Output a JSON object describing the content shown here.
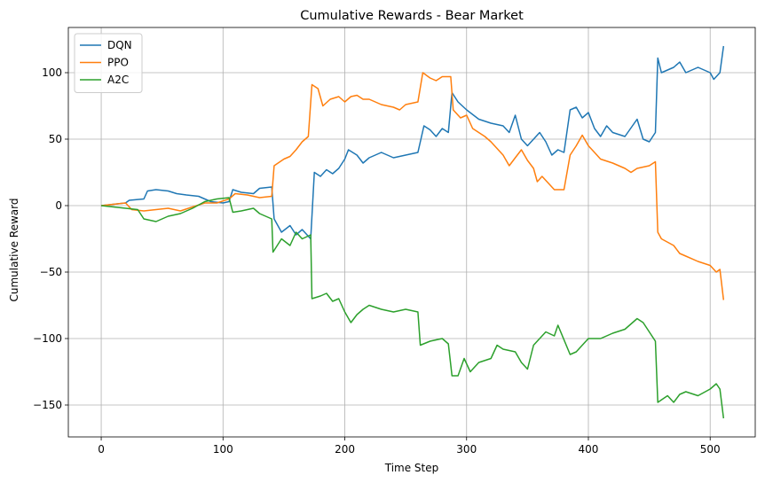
{
  "chart_data": {
    "type": "line",
    "title": "Cumulative Rewards - Bear Market",
    "xlabel": "Time Step",
    "ylabel": "Cumulative Reward",
    "xlim": [
      -27,
      537
    ],
    "ylim": [
      -174,
      134
    ],
    "xticks": [
      0,
      100,
      200,
      300,
      400,
      500
    ],
    "yticks": [
      -150,
      -100,
      -50,
      0,
      50,
      100
    ],
    "grid": true,
    "legend_position": "top-left",
    "series": [
      {
        "name": "DQN",
        "color": "#1f77b4",
        "points": [
          [
            0,
            0
          ],
          [
            10,
            1
          ],
          [
            20,
            2
          ],
          [
            23,
            4
          ],
          [
            35,
            5
          ],
          [
            38,
            11
          ],
          [
            45,
            12
          ],
          [
            55,
            11
          ],
          [
            62,
            9
          ],
          [
            70,
            8
          ],
          [
            80,
            7
          ],
          [
            90,
            3
          ],
          [
            100,
            2
          ],
          [
            105,
            3
          ],
          [
            108,
            12
          ],
          [
            115,
            10
          ],
          [
            125,
            9
          ],
          [
            130,
            13
          ],
          [
            140,
            14
          ],
          [
            142,
            -10
          ],
          [
            148,
            -20
          ],
          [
            155,
            -15
          ],
          [
            160,
            -22
          ],
          [
            165,
            -18
          ],
          [
            172,
            -25
          ],
          [
            175,
            25
          ],
          [
            180,
            22
          ],
          [
            185,
            27
          ],
          [
            190,
            24
          ],
          [
            195,
            28
          ],
          [
            200,
            35
          ],
          [
            203,
            42
          ],
          [
            210,
            38
          ],
          [
            215,
            32
          ],
          [
            220,
            36
          ],
          [
            230,
            40
          ],
          [
            240,
            36
          ],
          [
            250,
            38
          ],
          [
            260,
            40
          ],
          [
            265,
            60
          ],
          [
            270,
            57
          ],
          [
            275,
            52
          ],
          [
            280,
            58
          ],
          [
            285,
            55
          ],
          [
            288,
            85
          ],
          [
            293,
            78
          ],
          [
            300,
            72
          ],
          [
            310,
            65
          ],
          [
            320,
            62
          ],
          [
            330,
            60
          ],
          [
            335,
            55
          ],
          [
            340,
            68
          ],
          [
            345,
            50
          ],
          [
            350,
            45
          ],
          [
            360,
            55
          ],
          [
            365,
            48
          ],
          [
            370,
            38
          ],
          [
            375,
            42
          ],
          [
            380,
            40
          ],
          [
            385,
            72
          ],
          [
            390,
            74
          ],
          [
            395,
            66
          ],
          [
            400,
            70
          ],
          [
            405,
            58
          ],
          [
            410,
            52
          ],
          [
            415,
            60
          ],
          [
            420,
            55
          ],
          [
            430,
            52
          ],
          [
            440,
            65
          ],
          [
            445,
            50
          ],
          [
            450,
            48
          ],
          [
            455,
            55
          ],
          [
            457,
            111
          ],
          [
            460,
            100
          ],
          [
            470,
            104
          ],
          [
            475,
            108
          ],
          [
            480,
            100
          ],
          [
            490,
            104
          ],
          [
            500,
            100
          ],
          [
            503,
            95
          ],
          [
            508,
            100
          ],
          [
            511,
            120
          ]
        ]
      },
      {
        "name": "PPO",
        "color": "#ff7f0e",
        "points": [
          [
            0,
            0
          ],
          [
            10,
            1
          ],
          [
            20,
            2
          ],
          [
            25,
            -3
          ],
          [
            35,
            -4
          ],
          [
            45,
            -3
          ],
          [
            55,
            -2
          ],
          [
            65,
            -4
          ],
          [
            75,
            -1
          ],
          [
            85,
            2
          ],
          [
            95,
            2
          ],
          [
            105,
            5
          ],
          [
            110,
            9
          ],
          [
            120,
            8
          ],
          [
            130,
            6
          ],
          [
            140,
            7
          ],
          [
            142,
            30
          ],
          [
            150,
            35
          ],
          [
            155,
            37
          ],
          [
            160,
            42
          ],
          [
            165,
            48
          ],
          [
            170,
            52
          ],
          [
            173,
            91
          ],
          [
            178,
            88
          ],
          [
            182,
            75
          ],
          [
            188,
            80
          ],
          [
            195,
            82
          ],
          [
            200,
            78
          ],
          [
            205,
            82
          ],
          [
            210,
            83
          ],
          [
            215,
            80
          ],
          [
            220,
            80
          ],
          [
            230,
            76
          ],
          [
            240,
            74
          ],
          [
            245,
            72
          ],
          [
            250,
            76
          ],
          [
            260,
            78
          ],
          [
            264,
            100
          ],
          [
            270,
            96
          ],
          [
            275,
            94
          ],
          [
            280,
            97
          ],
          [
            287,
            97
          ],
          [
            289,
            72
          ],
          [
            295,
            66
          ],
          [
            300,
            68
          ],
          [
            305,
            58
          ],
          [
            315,
            52
          ],
          [
            320,
            48
          ],
          [
            330,
            38
          ],
          [
            335,
            30
          ],
          [
            340,
            36
          ],
          [
            345,
            42
          ],
          [
            350,
            34
          ],
          [
            355,
            28
          ],
          [
            358,
            18
          ],
          [
            362,
            22
          ],
          [
            368,
            16
          ],
          [
            372,
            12
          ],
          [
            380,
            12
          ],
          [
            385,
            38
          ],
          [
            390,
            45
          ],
          [
            395,
            53
          ],
          [
            400,
            45
          ],
          [
            405,
            40
          ],
          [
            410,
            35
          ],
          [
            420,
            32
          ],
          [
            430,
            28
          ],
          [
            435,
            25
          ],
          [
            440,
            28
          ],
          [
            450,
            30
          ],
          [
            455,
            33
          ],
          [
            457,
            -20
          ],
          [
            460,
            -25
          ],
          [
            470,
            -30
          ],
          [
            475,
            -36
          ],
          [
            480,
            -38
          ],
          [
            490,
            -42
          ],
          [
            500,
            -45
          ],
          [
            505,
            -50
          ],
          [
            508,
            -48
          ],
          [
            511,
            -71
          ]
        ]
      },
      {
        "name": "A2C",
        "color": "#2ca02c",
        "points": [
          [
            0,
            0
          ],
          [
            10,
            -1
          ],
          [
            20,
            -2
          ],
          [
            30,
            -3
          ],
          [
            35,
            -10
          ],
          [
            45,
            -12
          ],
          [
            55,
            -8
          ],
          [
            65,
            -6
          ],
          [
            75,
            -2
          ],
          [
            85,
            3
          ],
          [
            95,
            5
          ],
          [
            105,
            6
          ],
          [
            108,
            -5
          ],
          [
            115,
            -4
          ],
          [
            125,
            -2
          ],
          [
            130,
            -6
          ],
          [
            140,
            -10
          ],
          [
            141,
            -35
          ],
          [
            148,
            -25
          ],
          [
            155,
            -30
          ],
          [
            160,
            -20
          ],
          [
            165,
            -25
          ],
          [
            172,
            -22
          ],
          [
            173,
            -70
          ],
          [
            180,
            -68
          ],
          [
            185,
            -66
          ],
          [
            190,
            -72
          ],
          [
            195,
            -70
          ],
          [
            200,
            -80
          ],
          [
            205,
            -88
          ],
          [
            210,
            -82
          ],
          [
            215,
            -78
          ],
          [
            220,
            -75
          ],
          [
            230,
            -78
          ],
          [
            240,
            -80
          ],
          [
            250,
            -78
          ],
          [
            260,
            -80
          ],
          [
            262,
            -105
          ],
          [
            270,
            -102
          ],
          [
            280,
            -100
          ],
          [
            285,
            -104
          ],
          [
            288,
            -128
          ],
          [
            293,
            -128
          ],
          [
            298,
            -115
          ],
          [
            303,
            -125
          ],
          [
            310,
            -118
          ],
          [
            320,
            -115
          ],
          [
            325,
            -105
          ],
          [
            330,
            -108
          ],
          [
            340,
            -110
          ],
          [
            345,
            -118
          ],
          [
            350,
            -123
          ],
          [
            355,
            -105
          ],
          [
            360,
            -100
          ],
          [
            365,
            -95
          ],
          [
            372,
            -98
          ],
          [
            375,
            -90
          ],
          [
            385,
            -112
          ],
          [
            390,
            -110
          ],
          [
            395,
            -105
          ],
          [
            400,
            -100
          ],
          [
            410,
            -100
          ],
          [
            420,
            -96
          ],
          [
            430,
            -93
          ],
          [
            440,
            -85
          ],
          [
            445,
            -88
          ],
          [
            450,
            -95
          ],
          [
            455,
            -102
          ],
          [
            457,
            -148
          ],
          [
            465,
            -143
          ],
          [
            470,
            -148
          ],
          [
            475,
            -142
          ],
          [
            480,
            -140
          ],
          [
            490,
            -143
          ],
          [
            500,
            -138
          ],
          [
            505,
            -134
          ],
          [
            508,
            -138
          ],
          [
            511,
            -160
          ]
        ]
      }
    ]
  }
}
